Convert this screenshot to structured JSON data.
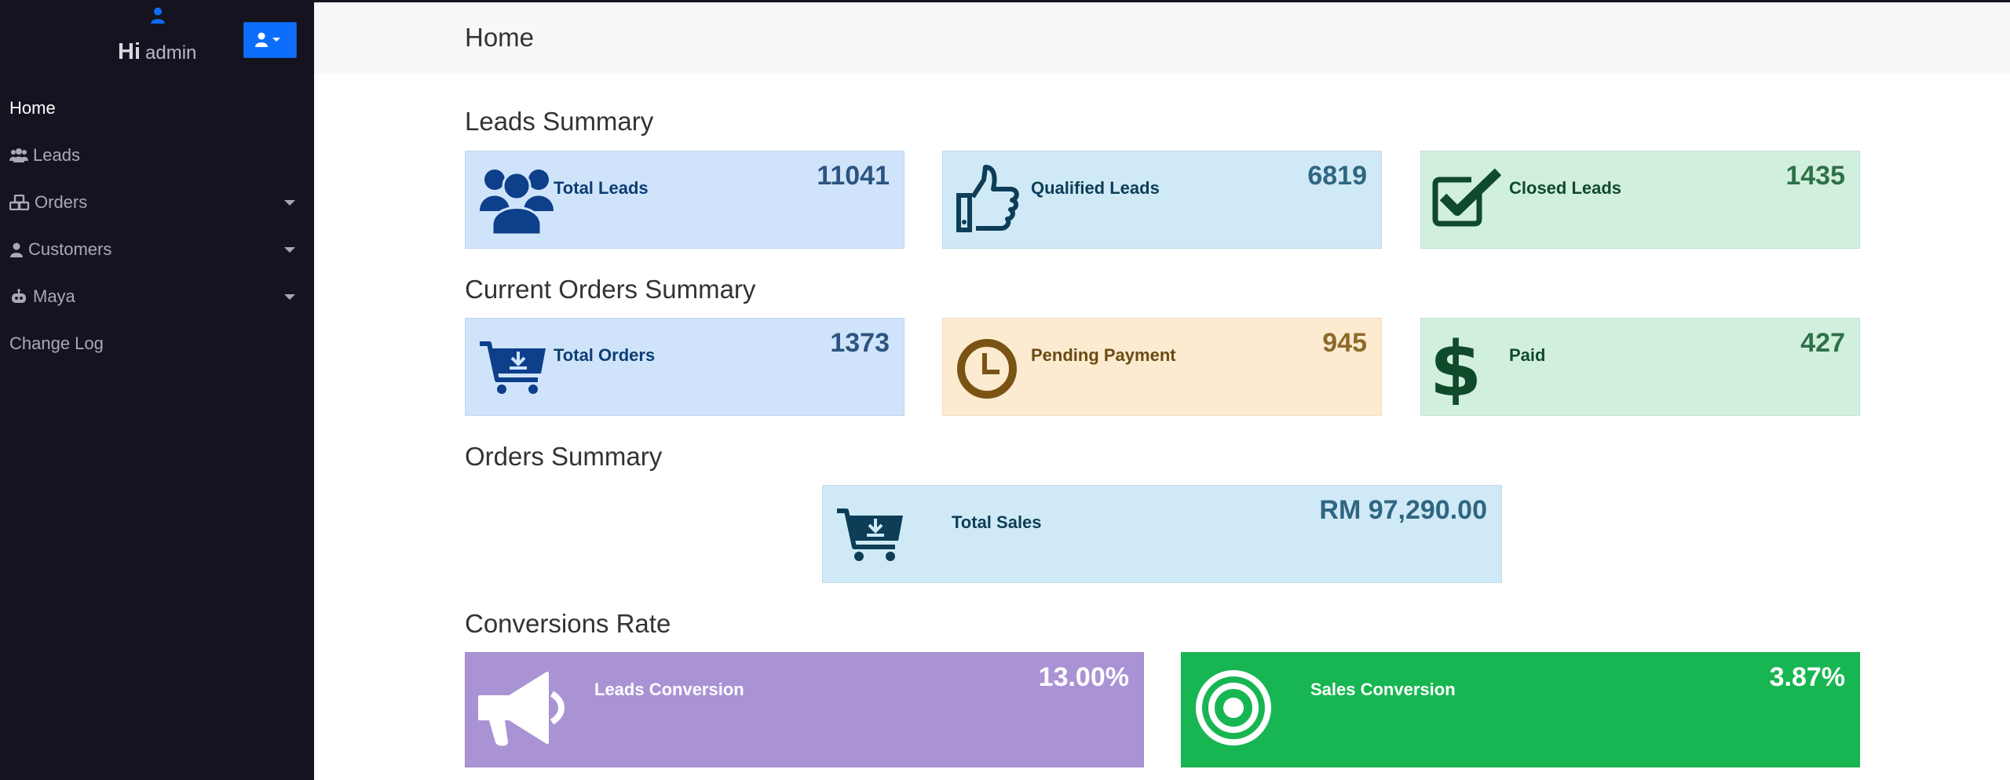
{
  "sidebar": {
    "greeting_hi": "Hi",
    "greeting_name": "admin",
    "items": [
      {
        "label": "Home",
        "icon": "none",
        "active": true
      },
      {
        "label": "Leads",
        "icon": "users-icon",
        "dropdown": false
      },
      {
        "label": "Orders",
        "icon": "cubes-icon",
        "dropdown": true
      },
      {
        "label": "Customers",
        "icon": "user-icon",
        "dropdown": true
      },
      {
        "label": "Maya",
        "icon": "robot-icon",
        "dropdown": true
      },
      {
        "label": "Change Log",
        "icon": "none"
      }
    ]
  },
  "header": {
    "title": "Home"
  },
  "leads_summary": {
    "title": "Leads Summary",
    "cards": [
      {
        "label": "Total Leads",
        "value": "11041",
        "icon": "users-icon"
      },
      {
        "label": "Qualified Leads",
        "value": "6819",
        "icon": "thumbs-up-icon"
      },
      {
        "label": "Closed Leads",
        "value": "1435",
        "icon": "check-square-icon"
      }
    ]
  },
  "current_orders_summary": {
    "title": "Current Orders Summary",
    "cards": [
      {
        "label": "Total Orders",
        "value": "1373",
        "icon": "cart-download-icon"
      },
      {
        "label": "Pending Payment",
        "value": "945",
        "icon": "clock-icon"
      },
      {
        "label": "Paid",
        "value": "427",
        "icon": "dollar-icon"
      }
    ]
  },
  "orders_summary": {
    "title": "Orders Summary",
    "cards": [
      {
        "label": "Total Sales",
        "value": "RM 97,290.00",
        "icon": "cart-download-icon"
      }
    ]
  },
  "conversions_rate": {
    "title": "Conversions Rate",
    "cards": [
      {
        "label": "Leads Conversion",
        "value": "13.00%",
        "icon": "megaphone-icon"
      },
      {
        "label": "Sales Conversion",
        "value": "3.87%",
        "icon": "target-icon"
      }
    ]
  },
  "colors": {
    "sidebar_bg": "#15131f",
    "primary_button": "#0d6efd",
    "info_card": "#cfe4fa",
    "success_card": "#d1efdd",
    "warning_card": "#fcebd0",
    "leads_conversion": "#a993d4",
    "sales_conversion": "#18b652"
  }
}
